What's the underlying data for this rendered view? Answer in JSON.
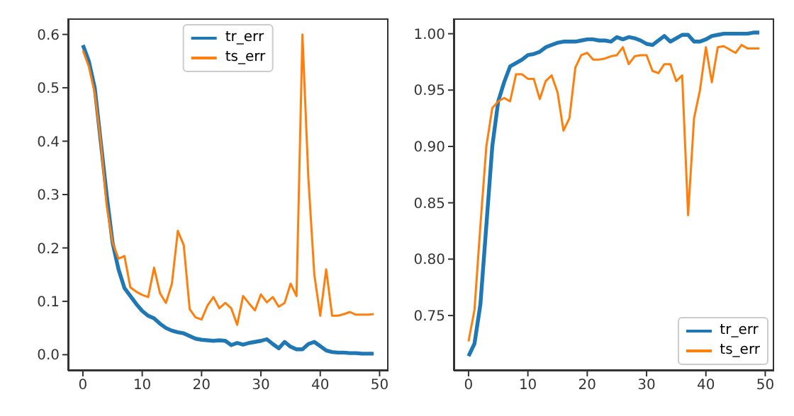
{
  "chart_data": [
    {
      "type": "line",
      "x": [
        0,
        1,
        2,
        3,
        4,
        5,
        6,
        7,
        8,
        9,
        10,
        11,
        12,
        13,
        14,
        15,
        16,
        17,
        18,
        19,
        20,
        21,
        22,
        23,
        24,
        25,
        26,
        27,
        28,
        29,
        30,
        31,
        32,
        33,
        34,
        35,
        36,
        37,
        38,
        39,
        40,
        41,
        42,
        43,
        44,
        45,
        46,
        47,
        48,
        49
      ],
      "series": [
        {
          "name": "tr_err",
          "color": "#1f77b4",
          "values": [
            0.58,
            0.55,
            0.5,
            0.4,
            0.3,
            0.21,
            0.16,
            0.125,
            0.11,
            0.095,
            0.082,
            0.073,
            0.068,
            0.058,
            0.05,
            0.045,
            0.042,
            0.04,
            0.035,
            0.03,
            0.028,
            0.027,
            0.026,
            0.027,
            0.026,
            0.018,
            0.022,
            0.019,
            0.022,
            0.024,
            0.026,
            0.029,
            0.02,
            0.012,
            0.024,
            0.015,
            0.01,
            0.01,
            0.02,
            0.024,
            0.016,
            0.008,
            0.005,
            0.004,
            0.004,
            0.003,
            0.003,
            0.002,
            0.002,
            0.002
          ]
        },
        {
          "name": "ts_err",
          "color": "#ff7f0e",
          "values": [
            0.57,
            0.54,
            0.49,
            0.4,
            0.28,
            0.21,
            0.18,
            0.185,
            0.126,
            0.118,
            0.112,
            0.108,
            0.163,
            0.115,
            0.097,
            0.133,
            0.232,
            0.205,
            0.085,
            0.07,
            0.066,
            0.092,
            0.108,
            0.087,
            0.097,
            0.087,
            0.056,
            0.11,
            0.096,
            0.083,
            0.113,
            0.098,
            0.108,
            0.09,
            0.097,
            0.133,
            0.11,
            0.6,
            0.33,
            0.15,
            0.073,
            0.16,
            0.073,
            0.073,
            0.076,
            0.08,
            0.075,
            0.075,
            0.075,
            0.076
          ]
        }
      ],
      "xlim": [
        -2.5,
        51.5
      ],
      "xticks": [
        0,
        10,
        20,
        30,
        40,
        50
      ],
      "ylim": [
        -0.03,
        0.63
      ],
      "yticks": [
        {
          "value": 0,
          "label": "0.0"
        },
        0.1,
        0.2,
        0.3,
        0.4,
        0.5,
        0.6
      ],
      "grid": false,
      "legend": "top"
    },
    {
      "type": "line",
      "x": [
        0,
        1,
        2,
        3,
        4,
        5,
        6,
        7,
        8,
        9,
        10,
        11,
        12,
        13,
        14,
        15,
        16,
        17,
        18,
        19,
        20,
        21,
        22,
        23,
        24,
        25,
        26,
        27,
        28,
        29,
        30,
        31,
        32,
        33,
        34,
        35,
        36,
        37,
        38,
        39,
        40,
        41,
        42,
        43,
        44,
        45,
        46,
        47,
        48,
        49
      ],
      "series": [
        {
          "name": "tr_err",
          "color": "#1f77b4",
          "values": [
            0.714,
            0.725,
            0.76,
            0.83,
            0.9,
            0.94,
            0.957,
            0.971,
            0.974,
            0.977,
            0.981,
            0.982,
            0.984,
            0.988,
            0.99,
            0.992,
            0.993,
            0.993,
            0.993,
            0.994,
            0.995,
            0.995,
            0.994,
            0.994,
            0.993,
            0.997,
            0.995,
            0.997,
            0.996,
            0.994,
            0.991,
            0.99,
            0.994,
            0.998,
            0.993,
            0.996,
            0.999,
            0.999,
            0.993,
            0.993,
            0.995,
            0.998,
            0.999,
            1.0,
            1.0,
            1.0,
            1.0,
            1.0,
            1.001,
            1.001
          ]
        },
        {
          "name": "ts_err",
          "color": "#ff7f0e",
          "values": [
            0.727,
            0.755,
            0.83,
            0.9,
            0.934,
            0.94,
            0.943,
            0.94,
            0.964,
            0.964,
            0.96,
            0.96,
            0.942,
            0.958,
            0.963,
            0.948,
            0.914,
            0.925,
            0.97,
            0.981,
            0.983,
            0.977,
            0.977,
            0.978,
            0.98,
            0.981,
            0.988,
            0.973,
            0.98,
            0.981,
            0.981,
            0.967,
            0.965,
            0.973,
            0.973,
            0.958,
            0.963,
            0.839,
            0.925,
            0.95,
            0.988,
            0.957,
            0.988,
            0.989,
            0.986,
            0.983,
            0.99,
            0.987,
            0.987,
            0.987
          ]
        }
      ],
      "xlim": [
        -2.5,
        51.5
      ],
      "xticks": [
        0,
        10,
        20,
        30,
        40,
        50
      ],
      "ylim": [
        0.701,
        1.0136
      ],
      "yticks": [
        0.75,
        {
          "value": 0.8,
          "label": "0.80"
        },
        0.85,
        {
          "value": 0.9,
          "label": "0.90"
        },
        0.95,
        {
          "value": 1.0,
          "label": "1.00"
        }
      ],
      "grid": false,
      "legend": "bottom right"
    }
  ]
}
